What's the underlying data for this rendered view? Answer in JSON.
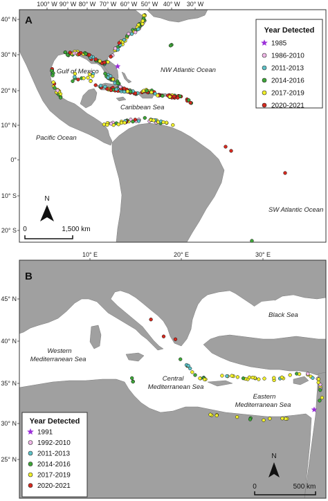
{
  "legend_title": "Year Detected",
  "categories": [
    {
      "key": "c1",
      "color": "#9b30d9",
      "shape": "star"
    },
    {
      "key": "c2",
      "color": "#f0b8e8",
      "shape": "circle"
    },
    {
      "key": "c3",
      "color": "#5fc3c8",
      "shape": "circle"
    },
    {
      "key": "c4",
      "color": "#3fa63a",
      "shape": "circle"
    },
    {
      "key": "c5",
      "color": "#f1f02c",
      "shape": "circle"
    },
    {
      "key": "c6",
      "color": "#d42a1f",
      "shape": "circle"
    }
  ],
  "colors": {
    "land": "#a0a0a0",
    "water": "#ffffff",
    "coast": "#7a7a7a"
  },
  "north_label": "N",
  "panelA": {
    "label": "A",
    "lon_ticks": [
      "100° W",
      "90° W",
      "80° W",
      "70° W",
      "60° W",
      "50° W",
      "40° W",
      "30° W"
    ],
    "lat_ticks": [
      "40° N",
      "30° N",
      "20° N",
      "10° N",
      "0°",
      "10° S",
      "20° S"
    ],
    "oceans": {
      "gulf": "Gulf of Mexico",
      "nwatl": "NW Atlantic Ocean",
      "carib": "Caribbean Sea",
      "pacific": "Pacific Ocean",
      "swatl": "SW Atlantic Ocean"
    },
    "legend_labels": [
      "1985",
      "1986-2010",
      "2011-2013",
      "2014-2016",
      "2017-2019",
      "2020-2021"
    ],
    "scale_zero": "0",
    "scale_end": "1,500 km"
  },
  "panelB": {
    "label": "B",
    "lon_ticks": [
      "10° E",
      "20° E",
      "30° E"
    ],
    "lat_ticks": [
      "45° N",
      "40° N",
      "35° N",
      "30° N",
      "25° N"
    ],
    "oceans": {
      "black": "Black Sea",
      "west1": "Western",
      "west2": "Mediterranean Sea",
      "central1": "Central",
      "central2": "Mediterranean Sea",
      "east1": "Eastern",
      "east2": "Mediterranean Sea"
    },
    "legend_labels": [
      "1991",
      "1992-2010",
      "2011-2013",
      "2014-2016",
      "2017-2019",
      "2020-2021"
    ],
    "scale_zero": "0",
    "scale_end": "500 km"
  }
}
